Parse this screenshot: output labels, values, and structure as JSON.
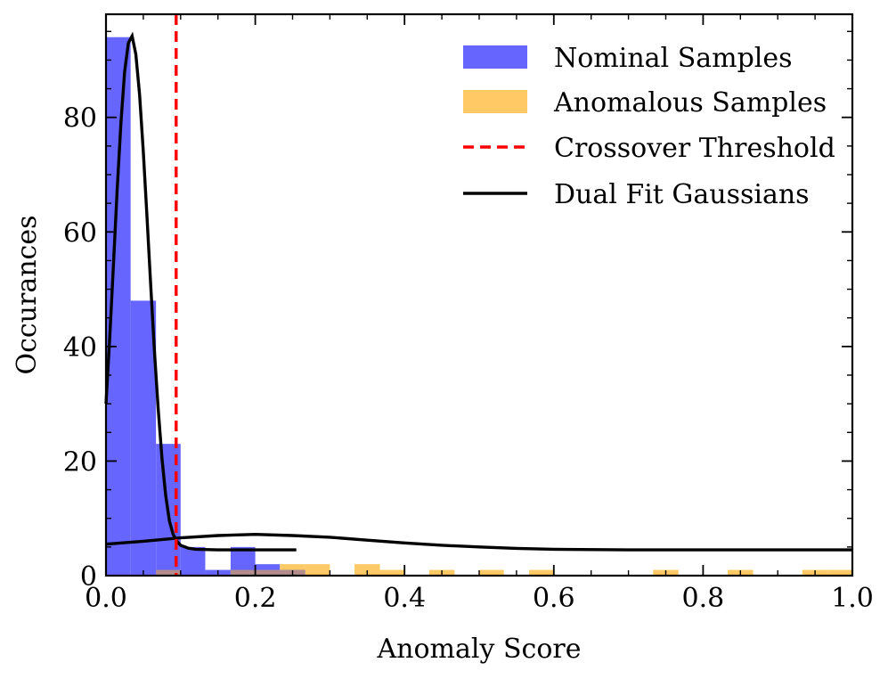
{
  "chart_data": {
    "type": "bar",
    "xlabel": "Anomaly Score",
    "ylabel": "Occurances",
    "xlim": [
      0.0,
      1.0
    ],
    "ylim": [
      0,
      98
    ],
    "x_ticks": [
      "0.0",
      "0.2",
      "0.4",
      "0.6",
      "0.8",
      "1.0"
    ],
    "y_ticks": [
      "0",
      "20",
      "40",
      "60",
      "80"
    ],
    "grid": false,
    "legend_position": "top-right",
    "colors": {
      "nominal": "#6666ff",
      "anomalous": "#ffc966",
      "overlap": "#b38c8c",
      "threshold": "#ff0000",
      "fit": "#000000"
    },
    "series": [
      {
        "name": "Nominal Samples",
        "type": "histogram",
        "bins": [
          {
            "x0": 0.0,
            "x1": 0.033,
            "count": 94
          },
          {
            "x0": 0.033,
            "x1": 0.067,
            "count": 48
          },
          {
            "x0": 0.067,
            "x1": 0.1,
            "count": 23
          },
          {
            "x0": 0.1,
            "x1": 0.133,
            "count": 5
          },
          {
            "x0": 0.133,
            "x1": 0.167,
            "count": 1
          },
          {
            "x0": 0.167,
            "x1": 0.2,
            "count": 5
          },
          {
            "x0": 0.2,
            "x1": 0.233,
            "count": 2
          },
          {
            "x0": 0.233,
            "x1": 0.267,
            "count": 1
          }
        ]
      },
      {
        "name": "Anomalous Samples",
        "type": "histogram",
        "bins": [
          {
            "x0": 0.067,
            "x1": 0.1,
            "count": 1
          },
          {
            "x0": 0.167,
            "x1": 0.2,
            "count": 1
          },
          {
            "x0": 0.2,
            "x1": 0.233,
            "count": 1
          },
          {
            "x0": 0.233,
            "x1": 0.267,
            "count": 2
          },
          {
            "x0": 0.267,
            "x1": 0.3,
            "count": 2
          },
          {
            "x0": 0.333,
            "x1": 0.367,
            "count": 2
          },
          {
            "x0": 0.367,
            "x1": 0.4,
            "count": 1
          },
          {
            "x0": 0.433,
            "x1": 0.467,
            "count": 1
          },
          {
            "x0": 0.5,
            "x1": 0.533,
            "count": 1
          },
          {
            "x0": 0.567,
            "x1": 0.6,
            "count": 1
          },
          {
            "x0": 0.733,
            "x1": 0.767,
            "count": 1
          },
          {
            "x0": 0.833,
            "x1": 0.867,
            "count": 1
          },
          {
            "x0": 0.933,
            "x1": 0.967,
            "count": 1
          },
          {
            "x0": 0.967,
            "x1": 1.0,
            "count": 1
          }
        ]
      },
      {
        "name": "Crossover Threshold",
        "type": "vline",
        "x": 0.094
      },
      {
        "name": "Dual Fit Gaussians",
        "type": "line",
        "curves": [
          {
            "x": [
              0.0,
              0.005,
              0.01,
              0.015,
              0.02,
              0.025,
              0.03,
              0.035,
              0.04,
              0.045,
              0.05,
              0.055,
              0.06,
              0.065,
              0.07,
              0.075,
              0.08,
              0.085,
              0.09,
              0.095,
              0.1,
              0.11,
              0.12,
              0.15,
              0.2,
              0.255
            ],
            "y": [
              30.0,
              41.5,
              54.3,
              67.4,
              79.0,
              88.0,
              93.0,
              94.2,
              91.0,
              84.0,
              74.0,
              62.5,
              50.5,
              39.0,
              29.0,
              20.5,
              14.0,
              9.5,
              7.2,
              6.0,
              5.3,
              4.8,
              4.6,
              4.5,
              4.5,
              4.5
            ]
          },
          {
            "x": [
              0.0,
              0.05,
              0.1,
              0.15,
              0.2,
              0.25,
              0.3,
              0.35,
              0.4,
              0.45,
              0.5,
              0.55,
              0.6,
              0.7,
              0.8,
              0.9,
              1.0
            ],
            "y": [
              5.5,
              6.0,
              6.6,
              7.0,
              7.2,
              7.0,
              6.7,
              6.2,
              5.7,
              5.3,
              5.0,
              4.75,
              4.6,
              4.5,
              4.5,
              4.5,
              4.5
            ]
          }
        ]
      }
    ]
  }
}
